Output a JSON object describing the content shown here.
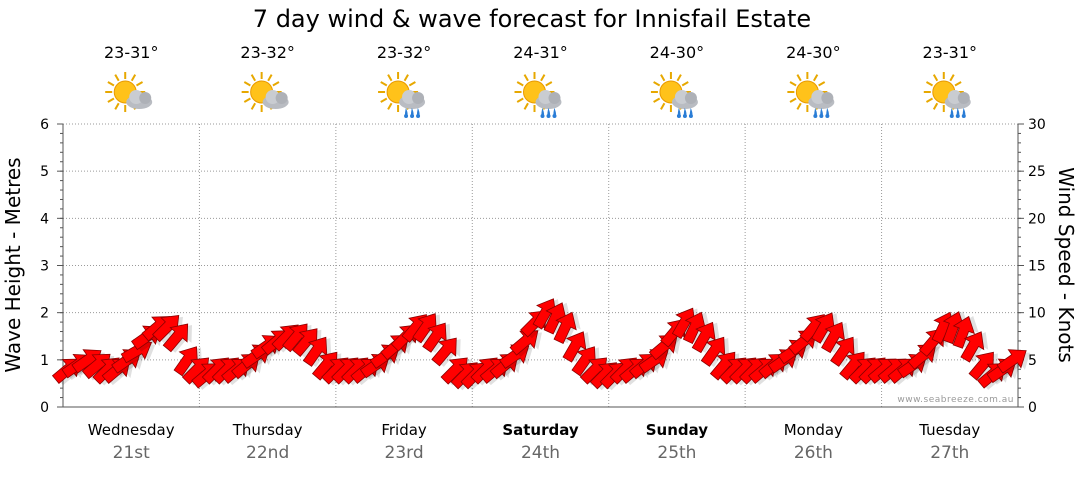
{
  "chart_data": {
    "type": "line",
    "title": "7 day wind & wave forecast for Innisfail Estate",
    "y_left_label": "Wave Height - Metres",
    "y_right_label": "Wind Speed - Knots",
    "y_left_range": [
      0,
      6
    ],
    "y_left_ticks": [
      "0",
      "1",
      "2",
      "3",
      "4",
      "5",
      "6"
    ],
    "y_right_range": [
      0,
      30
    ],
    "y_right_ticks": [
      "0",
      "5",
      "10",
      "15",
      "20",
      "25",
      "30"
    ],
    "credit": "www.seabreeze.com.au",
    "days": [
      {
        "name": "Wednesday",
        "date": "21st",
        "temp": "23-31°",
        "weather_icon": "sun-cloud-icon",
        "bold": false
      },
      {
        "name": "Thursday",
        "date": "22nd",
        "temp": "23-32°",
        "weather_icon": "sun-cloud-icon",
        "bold": false
      },
      {
        "name": "Friday",
        "date": "23rd",
        "temp": "23-32°",
        "weather_icon": "sun-cloud-rain-icon",
        "bold": false
      },
      {
        "name": "Saturday",
        "date": "24th",
        "temp": "24-31°",
        "weather_icon": "sun-cloud-rain-icon",
        "bold": true
      },
      {
        "name": "Sunday",
        "date": "25th",
        "temp": "24-30°",
        "weather_icon": "sun-cloud-rain-icon",
        "bold": true
      },
      {
        "name": "Monday",
        "date": "26th",
        "temp": "24-30°",
        "weather_icon": "sun-cloud-rain-icon",
        "bold": false
      },
      {
        "name": "Tuesday",
        "date": "27th",
        "temp": "23-31°",
        "weather_icon": "sun-cloud-rain-icon",
        "bold": false
      }
    ],
    "series": [
      {
        "name": "Wind Speed",
        "unit": "knots",
        "marker": "arrow",
        "color": "#ff0000",
        "values": [
          4,
          4.5,
          5,
          4.5,
          4,
          4,
          5,
          6,
          7.5,
          8.5,
          8.5,
          7.5,
          5,
          4,
          3.5,
          4,
          4,
          4,
          4.5,
          5.5,
          6.5,
          7,
          7.5,
          7.5,
          7,
          6,
          4.5,
          4,
          4,
          4,
          4,
          4.5,
          5.5,
          6.5,
          7.5,
          8.5,
          8.5,
          7.5,
          6,
          4,
          3.5,
          3.5,
          4,
          4,
          4.5,
          5.5,
          7,
          9,
          10,
          9.5,
          8.5,
          6.5,
          5,
          4,
          3.5,
          3.5,
          4,
          4,
          4.5,
          5,
          6.5,
          8,
          9,
          8.5,
          7.5,
          6,
          4.5,
          4,
          4,
          4,
          4,
          4.5,
          5,
          6,
          7,
          8.5,
          8.5,
          7.5,
          6,
          4.5,
          4,
          4,
          4,
          4,
          4,
          4.5,
          5.5,
          7,
          8.5,
          8.5,
          8,
          6.5,
          4.5,
          3.5,
          4,
          5
        ],
        "directions_deg": [
          220,
          215,
          215,
          220,
          225,
          220,
          215,
          210,
          215,
          220,
          225,
          230,
          235,
          225,
          220,
          225,
          225,
          220,
          220,
          215,
          215,
          220,
          225,
          230,
          230,
          235,
          230,
          225,
          225,
          225,
          220,
          215,
          215,
          220,
          225,
          230,
          235,
          235,
          230,
          225,
          225,
          225,
          225,
          220,
          220,
          215,
          220,
          225,
          240,
          245,
          245,
          240,
          235,
          225,
          225,
          225,
          225,
          220,
          220,
          215,
          220,
          230,
          240,
          245,
          240,
          235,
          230,
          225,
          225,
          225,
          220,
          220,
          215,
          215,
          220,
          230,
          240,
          240,
          235,
          230,
          225,
          225,
          220,
          220,
          220,
          215,
          220,
          230,
          245,
          250,
          250,
          240,
          230,
          220,
          215,
          215
        ]
      }
    ]
  }
}
